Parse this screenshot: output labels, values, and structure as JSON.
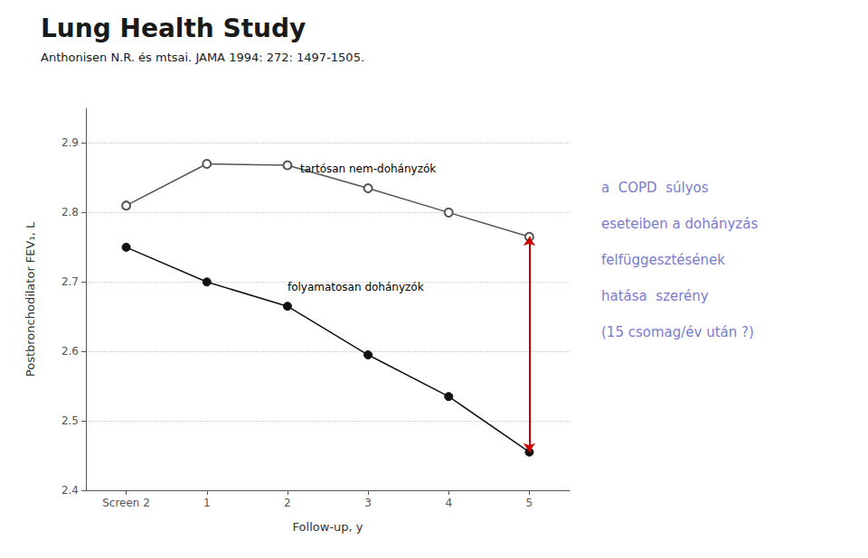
{
  "chart_data": {
    "type": "line",
    "title": "Lung Health Study",
    "subtitle": "Anthonisen N.R. és mtsai. JAMA 1994: 272: 1497-1505.",
    "x_label": "Follow-up, y",
    "y_label": "Postbronchodilator FEV₁, L",
    "x": [
      0,
      1,
      2,
      3,
      4,
      5
    ],
    "series": [
      {
        "name": "tartósan nem-dohányzók",
        "color": "#555555",
        "marker": "emptyCircle",
        "values": [
          2.81,
          2.87,
          2.868,
          2.835,
          2.8,
          2.765
        ]
      },
      {
        "name": "folyamatosan dohányzók",
        "color": "#111111",
        "marker": "circle",
        "values": [
          2.75,
          2.7,
          2.665,
          2.595,
          2.535,
          2.455
        ]
      }
    ],
    "xlim": [
      -0.5,
      5.5
    ],
    "xticks": [
      {
        "value": 0,
        "label": "Screen 2"
      },
      1,
      2,
      3,
      4,
      5
    ],
    "ylim": [
      2.4,
      2.95
    ],
    "yticks": [
      2.4,
      2.5,
      2.6,
      2.7,
      2.8,
      2.9
    ],
    "grid": true,
    "arrow": {
      "x": 5.0,
      "from": 2.455,
      "to": 2.765,
      "color": "#cc0000"
    },
    "annotations": [
      {
        "text": "a  COPD  súlyos",
        "color": "#7b7bcd"
      },
      {
        "text": "eseteiben a dohányzás",
        "color": "#7b7bcd"
      },
      {
        "text": "felfüggesztésének",
        "color": "#7b7bcd"
      },
      {
        "text": "hatása  szerény",
        "color": "#7b7bcd"
      },
      {
        "text": "(15 csomag/év után ?)",
        "color": "#7b7bcd"
      }
    ]
  }
}
